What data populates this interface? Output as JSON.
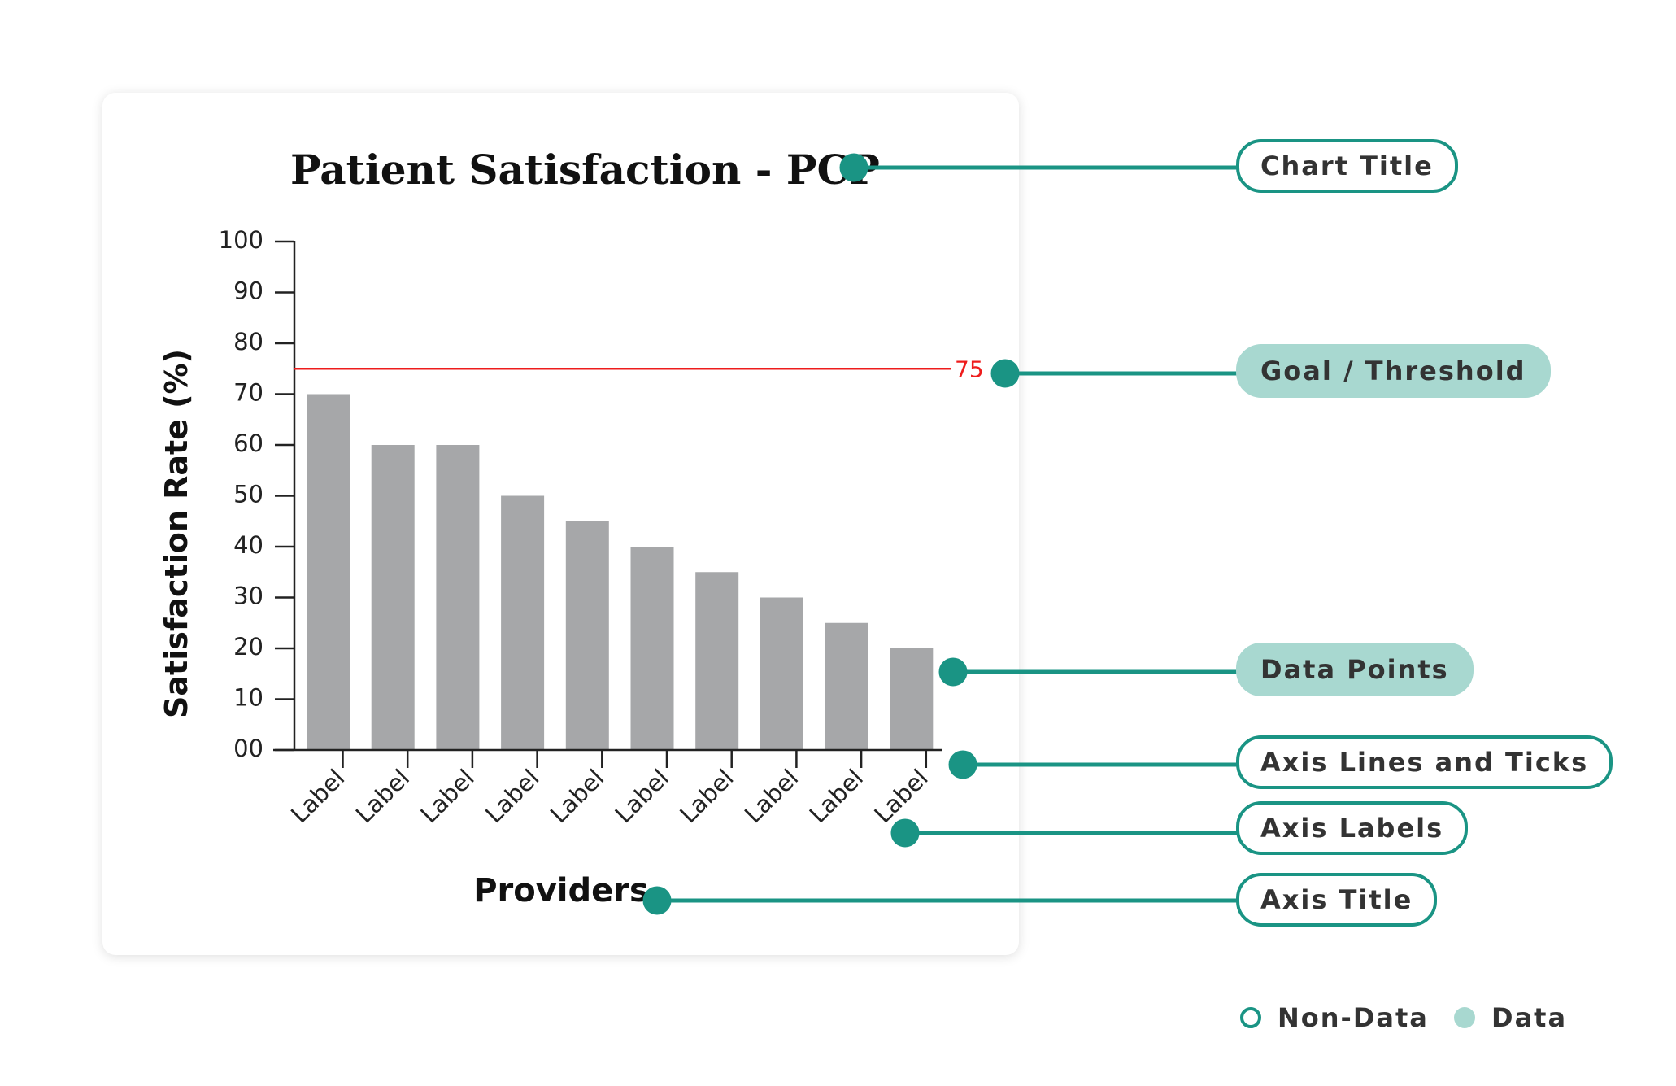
{
  "colors": {
    "bar": "#a6a7a9",
    "goal": "#ee1c1c",
    "axis": "#222222",
    "accent": "#1a9484",
    "data_fill": "#a8d8d0"
  },
  "chart_data": {
    "type": "bar",
    "title": "Patient Satisfaction - PCP",
    "xlabel": "Providers",
    "ylabel": "Satisfaction Rate (%)",
    "ylim": [
      0,
      100
    ],
    "yticks": [
      "00",
      "10",
      "20",
      "30",
      "40",
      "50",
      "60",
      "70",
      "80",
      "90",
      "100"
    ],
    "categories": [
      "Label",
      "Label",
      "Label",
      "Label",
      "Label",
      "Label",
      "Label",
      "Label",
      "Label",
      "Label"
    ],
    "values": [
      70,
      60,
      60,
      50,
      45,
      40,
      35,
      30,
      25,
      20
    ],
    "goal": {
      "value": 75,
      "label": "75"
    }
  },
  "annotations": {
    "chart_title": "Chart Title",
    "goal_threshold": "Goal / Threshold",
    "data_points": "Data Points",
    "axis_lines_ticks": "Axis Lines and Ticks",
    "axis_labels": "Axis Labels",
    "axis_title": "Axis Title"
  },
  "legend": {
    "non_data": "Non-Data",
    "data": "Data"
  }
}
